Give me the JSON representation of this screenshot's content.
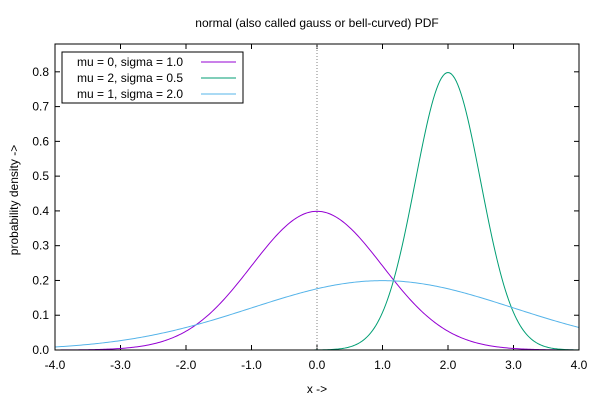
{
  "chart_data": {
    "type": "line",
    "title": "normal (also called gauss or bell-curved) PDF",
    "xlabel": "x ->",
    "ylabel": "probability density ->",
    "xlim": [
      -4.0,
      4.0
    ],
    "ylim": [
      0.0,
      0.88
    ],
    "x_ticks": [
      -4.0,
      -3.0,
      -2.0,
      -1.0,
      0.0,
      1.0,
      2.0,
      3.0,
      4.0
    ],
    "x_tick_labels": [
      "-4.0",
      "-3.0",
      "-2.0",
      "-1.0",
      "0.0",
      "1.0",
      "2.0",
      "3.0",
      "4.0"
    ],
    "y_ticks": [
      0.0,
      0.1,
      0.2,
      0.3,
      0.4,
      0.5,
      0.6,
      0.7,
      0.8
    ],
    "y_tick_labels": [
      "0.0",
      "0.1",
      "0.2",
      "0.3",
      "0.4",
      "0.5",
      "0.6",
      "0.7",
      "0.8"
    ],
    "grid": false,
    "legend_position": "top-left",
    "reference_line": {
      "x": 0.0,
      "style": "dotted",
      "color": "#808080"
    },
    "series": [
      {
        "name": "mu = 0, sigma = 1.0",
        "mu": 0.0,
        "sigma": 1.0,
        "peak": 0.399,
        "color": "#9400d3"
      },
      {
        "name": "mu = 2, sigma = 0.5",
        "mu": 2.0,
        "sigma": 0.5,
        "peak": 0.798,
        "color": "#009e73"
      },
      {
        "name": "mu = 1, sigma = 2.0",
        "mu": 1.0,
        "sigma": 2.0,
        "peak": 0.199,
        "color": "#56b4e9"
      }
    ]
  }
}
